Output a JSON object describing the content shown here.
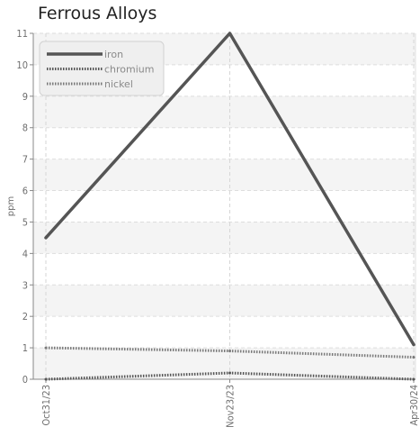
{
  "chart_data": {
    "type": "line",
    "title": "Ferrous Alloys",
    "ylabel": "ppm",
    "xlabel": "",
    "categories": [
      "Oct31/23",
      "Nov23/23",
      "Apr30/24"
    ],
    "ylim": [
      0,
      11
    ],
    "yticks": [
      0,
      1,
      2,
      3,
      4,
      5,
      6,
      7,
      8,
      9,
      10,
      11
    ],
    "grid": true,
    "legend_position": "top-left",
    "series": [
      {
        "name": "iron",
        "values": [
          4.5,
          11.0,
          1.1
        ],
        "color": "#555555",
        "style": "solid"
      },
      {
        "name": "chromium",
        "values": [
          0.0,
          0.2,
          0.0
        ],
        "color": "#555555",
        "style": "dotted"
      },
      {
        "name": "nickel",
        "values": [
          1.0,
          0.9,
          0.7
        ],
        "color": "#7a7a7a",
        "style": "dotted"
      }
    ]
  }
}
